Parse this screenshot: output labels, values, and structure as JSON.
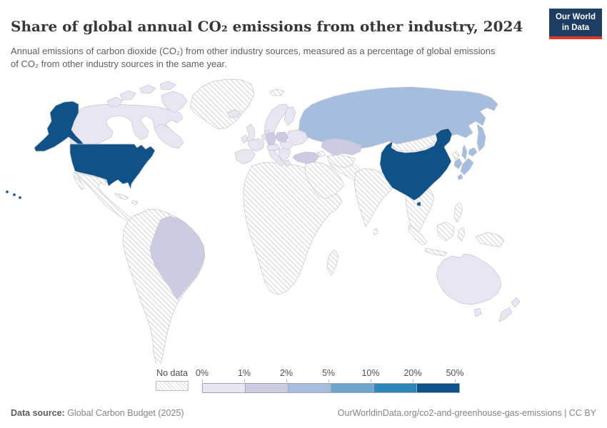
{
  "header": {
    "title": "Share of global annual CO₂ emissions from other industry, 2024",
    "subtitle": "Annual emissions of carbon dioxide (CO₂) from other industry sources, measured as a percentage of global emissions of CO₂ from other industry sources in the same year.",
    "logo": {
      "line1": "Our World",
      "line2": "in Data",
      "bg_color": "#1d3d63",
      "accent_color": "#d93a2b"
    }
  },
  "footer": {
    "source_label": "Data source:",
    "source_value": " Global Carbon Budget (2025)",
    "link_text": "OurWorldinData.org/co2-and-greenhouse-gas-emissions | CC BY"
  },
  "chart_data": {
    "type": "heatmap",
    "subtype": "world-choropleth-map",
    "title": "Share of global annual CO₂ emissions from other industry, 2024",
    "year": 2024,
    "unit": "% of global CO₂ emissions from other industry",
    "legend": {
      "position": "bottom",
      "no_data_label": "No data",
      "no_data_pattern": "diagonal-hatch",
      "tick_labels": [
        "0%",
        "1%",
        "2%",
        "5%",
        "10%",
        "20%",
        "50%"
      ],
      "bucket_ranges": [
        "0-1%",
        "1-2%",
        "2-5%",
        "5-10%",
        "10-20%",
        "20-50%"
      ],
      "bucket_colors": [
        "#e8e6f2",
        "#cdcbe4",
        "#a5bedd",
        "#6ea3cb",
        "#2d87ba",
        "#0f5288"
      ]
    },
    "map_values": {
      "united-states": 5,
      "hawaii": 5,
      "china": 5,
      "russia": 2,
      "japan": 2,
      "south-korea": 2,
      "germany": 1,
      "poland": 1,
      "turkey": 1,
      "kazakhstan": 1,
      "brazil": 1,
      "canada": 0,
      "australia": 0,
      "new-zealand": 0,
      "iceland": 0,
      "united-kingdom": 0,
      "ireland": 0,
      "scandinavia": 0,
      "finland": 0,
      "denmark": 0,
      "spain-portugal": 0,
      "france": 0,
      "benelux": 0,
      "central-europe": 0,
      "italy": 0,
      "balkans": 0,
      "greece": 0,
      "romania-hungary": 0,
      "eastern-europe": 0,
      "greenland": "no-data",
      "svalbard": "no-data",
      "mexico-central-america": "no-data",
      "cuba": "no-data",
      "hispaniola": "no-data",
      "south-america-other": "no-data",
      "africa": "no-data",
      "madagascar": "no-data",
      "middle-east": "no-data",
      "iran-afghanistan-pakistan": "no-data",
      "central-asia": "no-data",
      "caucasus": "no-data",
      "india": "no-data",
      "sri-lanka": "no-data",
      "mongolia": "no-data",
      "north-korea": "no-data",
      "southeast-asia": "no-data",
      "philippines": "no-data",
      "indonesia": "no-data",
      "new-guinea": "no-data"
    }
  }
}
